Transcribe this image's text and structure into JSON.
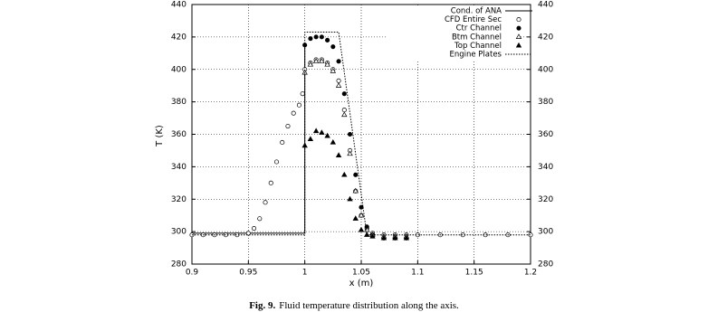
{
  "chart_data": {
    "type": "line",
    "xlabel": "x (m)",
    "ylabel": "T (K)",
    "caption_label": "Fig. 9.",
    "caption": "Fluid temperature distribution along the axis.",
    "xlim": [
      0.9,
      1.2
    ],
    "xticks": [
      0.9,
      0.95,
      1,
      1.05,
      1.1,
      1.15,
      1.2
    ],
    "ylim": [
      280,
      440
    ],
    "yticks": [
      280,
      300,
      320,
      340,
      360,
      380,
      400,
      420,
      440
    ],
    "grid": true,
    "legend": "upper right",
    "series": [
      {
        "name": "Cond. of ANA",
        "color": "#000000",
        "line": "solid",
        "marker": null,
        "x": [
          0.9,
          1.0,
          1.0
        ],
        "values": [
          299,
          299,
          415
        ]
      },
      {
        "name": "CFD Entire Sec",
        "color": "#000000",
        "line": null,
        "marker": "open-circle",
        "x": [
          0.9,
          0.91,
          0.92,
          0.93,
          0.94,
          0.95,
          0.955,
          0.96,
          0.965,
          0.97,
          0.975,
          0.98,
          0.985,
          0.99,
          0.995,
          0.998,
          1.0,
          1.005,
          1.01,
          1.015,
          1.02,
          1.025,
          1.03,
          1.035,
          1.04,
          1.045,
          1.05,
          1.055,
          1.06,
          1.07,
          1.08,
          1.09,
          1.1,
          1.12,
          1.14,
          1.16,
          1.18,
          1.2
        ],
        "values": [
          298,
          298,
          298,
          298,
          298,
          299,
          302,
          308,
          318,
          330,
          343,
          355,
          365,
          373,
          378,
          385,
          400,
          404,
          406,
          406,
          404,
          400,
          393,
          375,
          350,
          325,
          310,
          302,
          299,
          298,
          298,
          298,
          298,
          298,
          298,
          298,
          298,
          298
        ]
      },
      {
        "name": "Ctr Channel",
        "color": "#000000",
        "line": null,
        "marker": "filled-circle",
        "x": [
          1.0,
          1.005,
          1.01,
          1.015,
          1.02,
          1.025,
          1.03,
          1.035,
          1.04,
          1.045,
          1.05,
          1.055,
          1.06,
          1.07,
          1.08,
          1.09
        ],
        "values": [
          415,
          419,
          420,
          420,
          418,
          414,
          405,
          385,
          360,
          335,
          315,
          303,
          298,
          296,
          296,
          296
        ]
      },
      {
        "name": "Btm Channel",
        "color": "#000000",
        "line": null,
        "marker": "open-triangle",
        "x": [
          1.0,
          1.005,
          1.01,
          1.015,
          1.02,
          1.025,
          1.03,
          1.035,
          1.04,
          1.045,
          1.05,
          1.055,
          1.06,
          1.07,
          1.08,
          1.09
        ],
        "values": [
          398,
          403,
          405,
          405,
          403,
          399,
          390,
          372,
          348,
          325,
          310,
          301,
          298,
          297,
          297,
          297
        ]
      },
      {
        "name": "Top Channel",
        "color": "#000000",
        "line": null,
        "marker": "filled-triangle",
        "x": [
          1.0,
          1.005,
          1.01,
          1.015,
          1.02,
          1.025,
          1.03,
          1.035,
          1.04,
          1.045,
          1.05,
          1.055,
          1.06,
          1.07,
          1.08,
          1.09
        ],
        "values": [
          353,
          357,
          362,
          361,
          359,
          355,
          347,
          335,
          320,
          308,
          301,
          298,
          297,
          296,
          296,
          296
        ]
      },
      {
        "name": "Engine Plates",
        "color": "#000000",
        "line": "dotted",
        "marker": null,
        "x": [
          0.9,
          1.0,
          1.0,
          1.03,
          1.055,
          1.2
        ],
        "values": [
          298,
          298,
          423,
          423,
          298,
          298
        ]
      }
    ]
  }
}
